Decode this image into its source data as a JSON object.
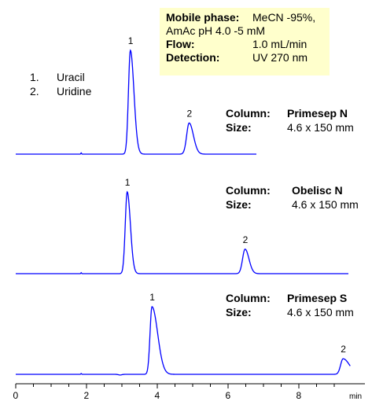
{
  "conditions": {
    "mobile_phase_label": "Mobile phase:",
    "mobile_phase_value": "MeCN -95%,",
    "mobile_phase_value2": "AmAc pH 4.0 -5 mM",
    "flow_label": "Flow:",
    "flow_value": "1.0 mL/min",
    "detection_label": "Detection:",
    "detection_value": "UV 270 nm"
  },
  "peaks_legend": [
    {
      "num": "1.",
      "name": "Uracil"
    },
    {
      "num": "2.",
      "name": "Uridine"
    }
  ],
  "chart_data": {
    "type": "line",
    "x_unit": "min",
    "xlim": [
      0,
      9.4
    ],
    "x_ticks": [
      "0",
      "2",
      "4",
      "6",
      "8"
    ],
    "line_color": "#0000ff",
    "grid": false,
    "panels": [
      {
        "column_label": "Column:",
        "column_value": "Primesep N",
        "size_label": "Size:",
        "size_value": "4.6 x 150 mm",
        "peaks": [
          {
            "label": "1",
            "rt": 3.24,
            "height": 1.0
          },
          {
            "label": "2",
            "rt": 4.9,
            "height": 0.3
          }
        ]
      },
      {
        "column_label": "Column:",
        "column_value": "Obelisc N",
        "size_label": "Size:",
        "size_value": "4.6 x 150 mm",
        "peaks": [
          {
            "label": "1",
            "rt": 3.15,
            "height": 1.0
          },
          {
            "label": "2",
            "rt": 6.48,
            "height": 0.3
          }
        ]
      },
      {
        "column_label": "Column:",
        "column_value": "Primesep S",
        "size_label": "Size:",
        "size_value": "4.6 x 150 mm",
        "peaks": [
          {
            "label": "1",
            "rt": 3.85,
            "height": 1.0
          },
          {
            "label": "2",
            "rt": 9.25,
            "height": 0.23
          }
        ]
      }
    ]
  }
}
